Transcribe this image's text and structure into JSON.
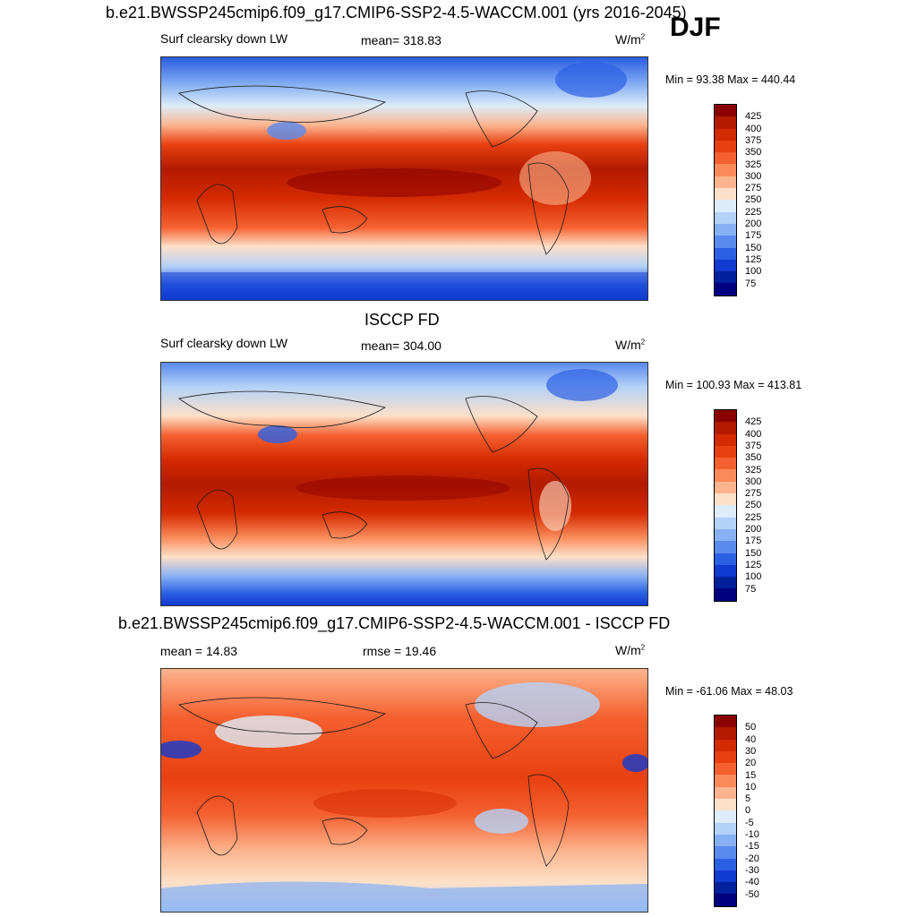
{
  "header": {
    "main_title": "b.e21.BWSSP245cmip6.f09_g17.CMIP6-SSP2-4.5-WACCM.001 (yrs 2016-2045)",
    "season": "DJF"
  },
  "panels": [
    {
      "title": "",
      "left_label": "Surf clearsky down LW",
      "center_label": "mean= 318.83",
      "units": "W/m",
      "units_sup": "2",
      "minmax": "Min =  93.38 Max = 440.44"
    },
    {
      "title": "ISCCP FD",
      "left_label": "Surf clearsky down LW",
      "center_label": "mean= 304.00",
      "units": "W/m",
      "units_sup": "2",
      "minmax": "Min = 100.93 Max = 413.81"
    },
    {
      "title": "b.e21.BWSSP245cmip6.f09_g17.CMIP6-SSP2-4.5-WACCM.001 - ISCCP FD",
      "left_label": "mean =  14.83",
      "center_label": "rmse =  19.46",
      "units": "W/m",
      "units_sup": "2",
      "minmax": "Min = -61.06 Max =  48.03"
    }
  ],
  "chart_data": [
    {
      "type": "heatmap",
      "title": "Surf clearsky down LW",
      "subtitle": "mean= 318.83",
      "units": "W/m2",
      "colorbar_levels": [
        "425",
        "400",
        "375",
        "350",
        "325",
        "300",
        "275",
        "250",
        "225",
        "200",
        "175",
        "150",
        "125",
        "100",
        "75"
      ],
      "colorbar_colors": [
        "#8b0000",
        "#b31a00",
        "#d42a00",
        "#e84010",
        "#f56030",
        "#fa8a5a",
        "#fcb48e",
        "#fde0c8",
        "#dcecfa",
        "#b4d2f8",
        "#88b0f4",
        "#5a8aee",
        "#2c60e4",
        "#103ad0",
        "#00209c",
        "#000080"
      ],
      "min": 93.38,
      "max": 440.44
    },
    {
      "type": "heatmap",
      "title": "ISCCP FD",
      "subtitle": "mean= 304.00",
      "units": "W/m2",
      "colorbar_levels": [
        "425",
        "400",
        "375",
        "350",
        "325",
        "300",
        "275",
        "250",
        "225",
        "200",
        "175",
        "150",
        "125",
        "100",
        "75"
      ],
      "colorbar_colors": [
        "#8b0000",
        "#b31a00",
        "#d42a00",
        "#e84010",
        "#f56030",
        "#fa8a5a",
        "#fcb48e",
        "#fde0c8",
        "#dcecfa",
        "#b4d2f8",
        "#88b0f4",
        "#5a8aee",
        "#2c60e4",
        "#103ad0",
        "#00209c",
        "#000080"
      ],
      "min": 100.93,
      "max": 413.81
    },
    {
      "type": "heatmap",
      "title": "b.e21.BWSSP245cmip6.f09_g17.CMIP6-SSP2-4.5-WACCM.001 - ISCCP FD",
      "subtitle": "mean =  14.83 rmse =  19.46",
      "units": "W/m2",
      "colorbar_levels": [
        "50",
        "40",
        "30",
        "20",
        "15",
        "10",
        "5",
        "0",
        "-5",
        "-10",
        "-15",
        "-20",
        "-30",
        "-40",
        "-50"
      ],
      "colorbar_colors": [
        "#8b0000",
        "#b31a00",
        "#d42a00",
        "#e84010",
        "#f56030",
        "#fa8a5a",
        "#fcb48e",
        "#fde0c8",
        "#dcecfa",
        "#b4d2f8",
        "#88b0f4",
        "#5a8aee",
        "#2c60e4",
        "#103ad0",
        "#00209c",
        "#000080"
      ],
      "min": -61.06,
      "max": 48.03
    }
  ]
}
